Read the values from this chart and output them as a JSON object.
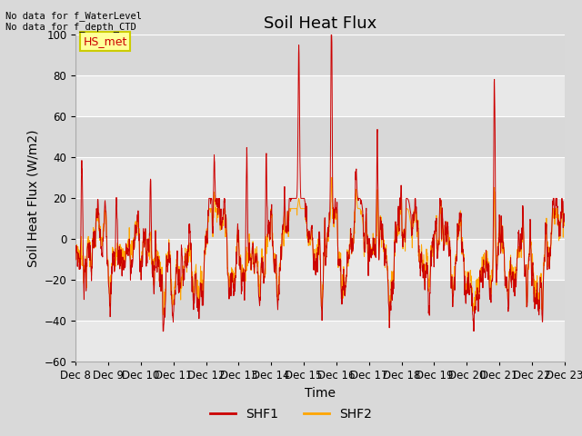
{
  "title": "Soil Heat Flux",
  "ylabel": "Soil Heat Flux (W/m2)",
  "xlabel": "Time",
  "ylim": [
    -60,
    100
  ],
  "yticks": [
    -60,
    -40,
    -20,
    0,
    20,
    40,
    60,
    80,
    100
  ],
  "x_tick_labels": [
    "Dec 8",
    "Dec 9",
    "Dec 10",
    "Dec 11",
    "Dec 12",
    "Dec 13",
    "Dec 14",
    "Dec 15",
    "Dec 16",
    "Dec 17",
    "Dec 18",
    "Dec 19",
    "Dec 20",
    "Dec 21",
    "Dec 22",
    "Dec 23"
  ],
  "annotation_top_left": "No data for f_WaterLevel\nNo data for f_depth_CTD",
  "box_label": "HS_met",
  "legend_labels": [
    "SHF1",
    "SHF2"
  ],
  "shf1_color": "#cc0000",
  "shf2_color": "#ffa500",
  "bg_color": "#d9d9d9",
  "plot_bg_color": "#e8e8e8",
  "band_color_light": "#e8e8e8",
  "band_color_dark": "#d8d8d8",
  "grid_color": "#ffffff",
  "box_bg_color": "#ffff99",
  "box_edge_color": "#cccc00",
  "title_fontsize": 13,
  "label_fontsize": 10,
  "tick_fontsize": 8.5
}
